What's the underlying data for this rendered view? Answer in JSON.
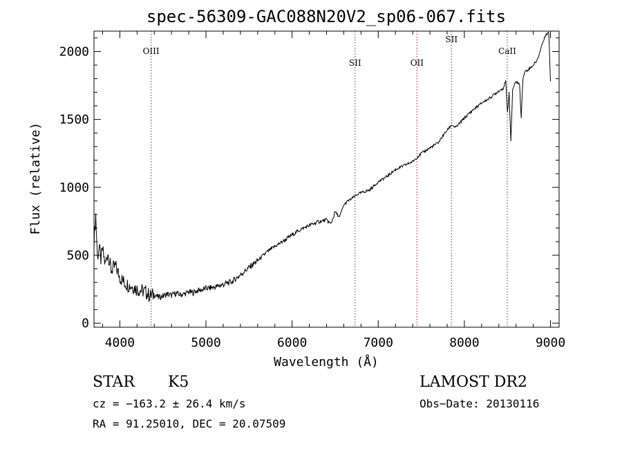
{
  "chart_data": {
    "type": "line",
    "title": "spec-56309-GAC088N20V2_sp06-067.fits",
    "xlabel": "Wavelength (Å)",
    "ylabel": "Flux (relative)",
    "xlim": [
      3700,
      9100
    ],
    "ylim": [
      -30,
      2150
    ],
    "xticks": [
      4000,
      5000,
      6000,
      7000,
      8000,
      9000
    ],
    "yticks": [
      0,
      500,
      1000,
      1500,
      2000
    ],
    "grid": false,
    "series": [
      {
        "x": [
          3700,
          3720,
          3740,
          3760,
          3780,
          3800,
          3830,
          3860,
          3900,
          3950,
          4000,
          4050,
          4100,
          4150,
          4200,
          4250,
          4300,
          4350,
          4400,
          4450,
          4500,
          4550,
          4600,
          4650,
          4700,
          4750,
          4800,
          4850,
          4900,
          4950,
          5000,
          5100,
          5200,
          5300,
          5400,
          5500,
          5600,
          5700,
          5800,
          5900,
          6000,
          6100,
          6200,
          6300,
          6400,
          6450,
          6500,
          6550,
          6600,
          6650,
          6700,
          6750,
          6800,
          6900,
          7000,
          7100,
          7200,
          7300,
          7400,
          7500,
          7600,
          7700,
          7750,
          7800,
          7850,
          7900,
          8000,
          8100,
          8200,
          8300,
          8400,
          8450,
          8480,
          8500,
          8520,
          8540,
          8560,
          8600,
          8640,
          8660,
          8680,
          8700,
          8750,
          8800,
          8850,
          8900,
          8950,
          8980,
          9000
        ],
        "y": [
          600,
          800,
          480,
          560,
          470,
          540,
          430,
          520,
          390,
          420,
          340,
          300,
          280,
          270,
          250,
          240,
          230,
          200,
          210,
          190,
          200,
          215,
          205,
          220,
          210,
          215,
          230,
          225,
          240,
          245,
          255,
          265,
          285,
          305,
          355,
          410,
          460,
          520,
          565,
          605,
          650,
          690,
          720,
          745,
          760,
          730,
          820,
          780,
          870,
          900,
          920,
          945,
          960,
          980,
          1040,
          1080,
          1130,
          1160,
          1190,
          1250,
          1290,
          1330,
          1380,
          1420,
          1460,
          1440,
          1510,
          1570,
          1620,
          1660,
          1710,
          1730,
          1780,
          1550,
          1700,
          1330,
          1720,
          1780,
          1760,
          1520,
          1800,
          1850,
          1870,
          1900,
          1940,
          2050,
          2130,
          2140,
          1780
        ],
        "color": "#000000"
      }
    ],
    "lines": [
      {
        "label": "OIII",
        "wavelength": 4363
      },
      {
        "label": "SII",
        "wavelength": 6731
      },
      {
        "label": "OII",
        "wavelength": 7450
      },
      {
        "label": "SII",
        "wavelength": 7850
      },
      {
        "label": "CaII",
        "wavelength": 8498
      }
    ],
    "line_color": "#8b1a1a"
  },
  "info": {
    "class": "STAR",
    "subclass": "K5",
    "survey": "LAMOST DR2",
    "cz": "cz = −163.2 ± 26.4 km/s",
    "obs_date": "Obs−Date: 20130116",
    "radec": "RA =  91.25010, DEC =  20.07509"
  }
}
